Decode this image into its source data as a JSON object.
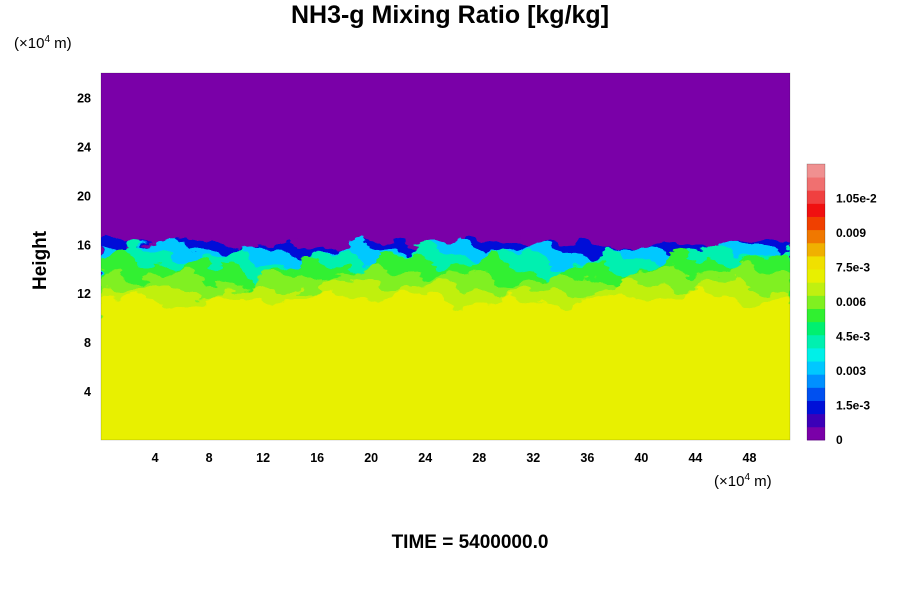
{
  "chart_data": {
    "type": "heatmap",
    "title": "NH3-g Mixing Ratio [kg/kg]",
    "ylabel": "Height",
    "xunit_prefix": "(×10",
    "xunit_exp": "4",
    "xunit_suffix": " m)",
    "yunit_prefix": "(×10",
    "yunit_exp": "4",
    "yunit_suffix": " m)",
    "xlim": [
      0,
      51
    ],
    "ylim": [
      0,
      30
    ],
    "xticks": [
      4,
      8,
      12,
      16,
      20,
      24,
      28,
      32,
      36,
      40,
      44,
      48
    ],
    "yticks": [
      4,
      8,
      12,
      16,
      20,
      24,
      28
    ],
    "colorbar": {
      "range": [
        0,
        0.012
      ],
      "ticks": [
        {
          "value": 0,
          "label": "0"
        },
        {
          "value": 0.0015,
          "label": "1.5e-3"
        },
        {
          "value": 0.003,
          "label": "0.003"
        },
        {
          "value": 0.0045,
          "label": "4.5e-3"
        },
        {
          "value": 0.006,
          "label": "0.006"
        },
        {
          "value": 0.0075,
          "label": "7.5e-3"
        },
        {
          "value": 0.009,
          "label": "0.009"
        },
        {
          "value": 0.0105,
          "label": "1.05e-2"
        }
      ],
      "colors": [
        "#7a00a8",
        "#3c00b8",
        "#0010d8",
        "#0050f0",
        "#0090ff",
        "#00c8ff",
        "#00f0e8",
        "#00f0b0",
        "#00f070",
        "#30f030",
        "#80f020",
        "#c0f010",
        "#e8f000",
        "#f0e000",
        "#f0b000",
        "#f07800",
        "#f04000",
        "#f01010",
        "#f04040",
        "#f07070",
        "#f09090"
      ],
      "value_upper_region": 0,
      "value_lower_region": 0.0076
    },
    "layers": [
      {
        "region": "above ~16 (x10^4 m)",
        "value": 0
      },
      {
        "region": "~9.5 to ~16 (x10^4 m), turbulent mixing",
        "value_range": [
          0.0003,
          0.0075
        ]
      },
      {
        "region": "below ~9.5 (x10^4 m)",
        "value": 0.0076
      }
    ]
  },
  "footer": {
    "time_label": "TIME = 5400000.0"
  }
}
